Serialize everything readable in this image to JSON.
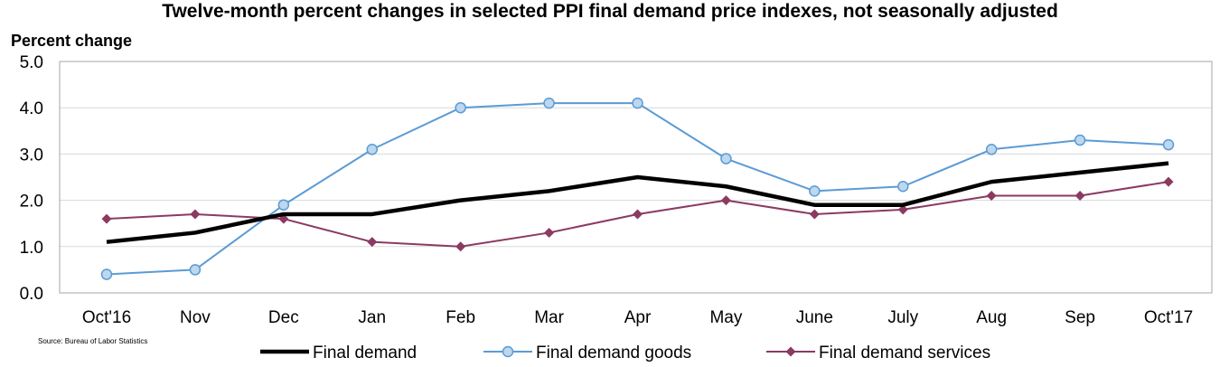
{
  "chart_data": {
    "type": "line",
    "title": "Twelve-month percent changes in selected PPI final demand price indexes, not seasonally adjusted",
    "ylabel": "Percent change",
    "xlabel": "",
    "categories": [
      "Oct'16",
      "Nov",
      "Dec",
      "Jan",
      "Feb",
      "Mar",
      "Apr",
      "May",
      "June",
      "July",
      "Aug",
      "Sep",
      "Oct'17"
    ],
    "ylim": [
      0,
      5
    ],
    "yticks": [
      "0.0",
      "1.0",
      "2.0",
      "3.0",
      "4.0",
      "5.0"
    ],
    "grid": true,
    "legend_position": "bottom",
    "source": "Source: Bureau of Labor Statistics",
    "series": [
      {
        "name": "Final demand",
        "color": "#000000",
        "marker": "none",
        "values": [
          1.1,
          1.3,
          1.7,
          1.7,
          2.0,
          2.2,
          2.5,
          2.3,
          1.9,
          1.9,
          2.4,
          2.6,
          2.8
        ]
      },
      {
        "name": "Final demand goods",
        "color": "#5b9bd5",
        "marker": "circle",
        "values": [
          0.4,
          0.5,
          1.9,
          3.1,
          4.0,
          4.1,
          4.1,
          2.9,
          2.2,
          2.3,
          3.1,
          3.3,
          3.2
        ]
      },
      {
        "name": "Final demand services",
        "color": "#8b3a62",
        "marker": "diamond",
        "values": [
          1.6,
          1.7,
          1.6,
          1.1,
          1.0,
          1.3,
          1.7,
          2.0,
          1.7,
          1.8,
          2.1,
          2.1,
          2.4
        ]
      }
    ]
  }
}
